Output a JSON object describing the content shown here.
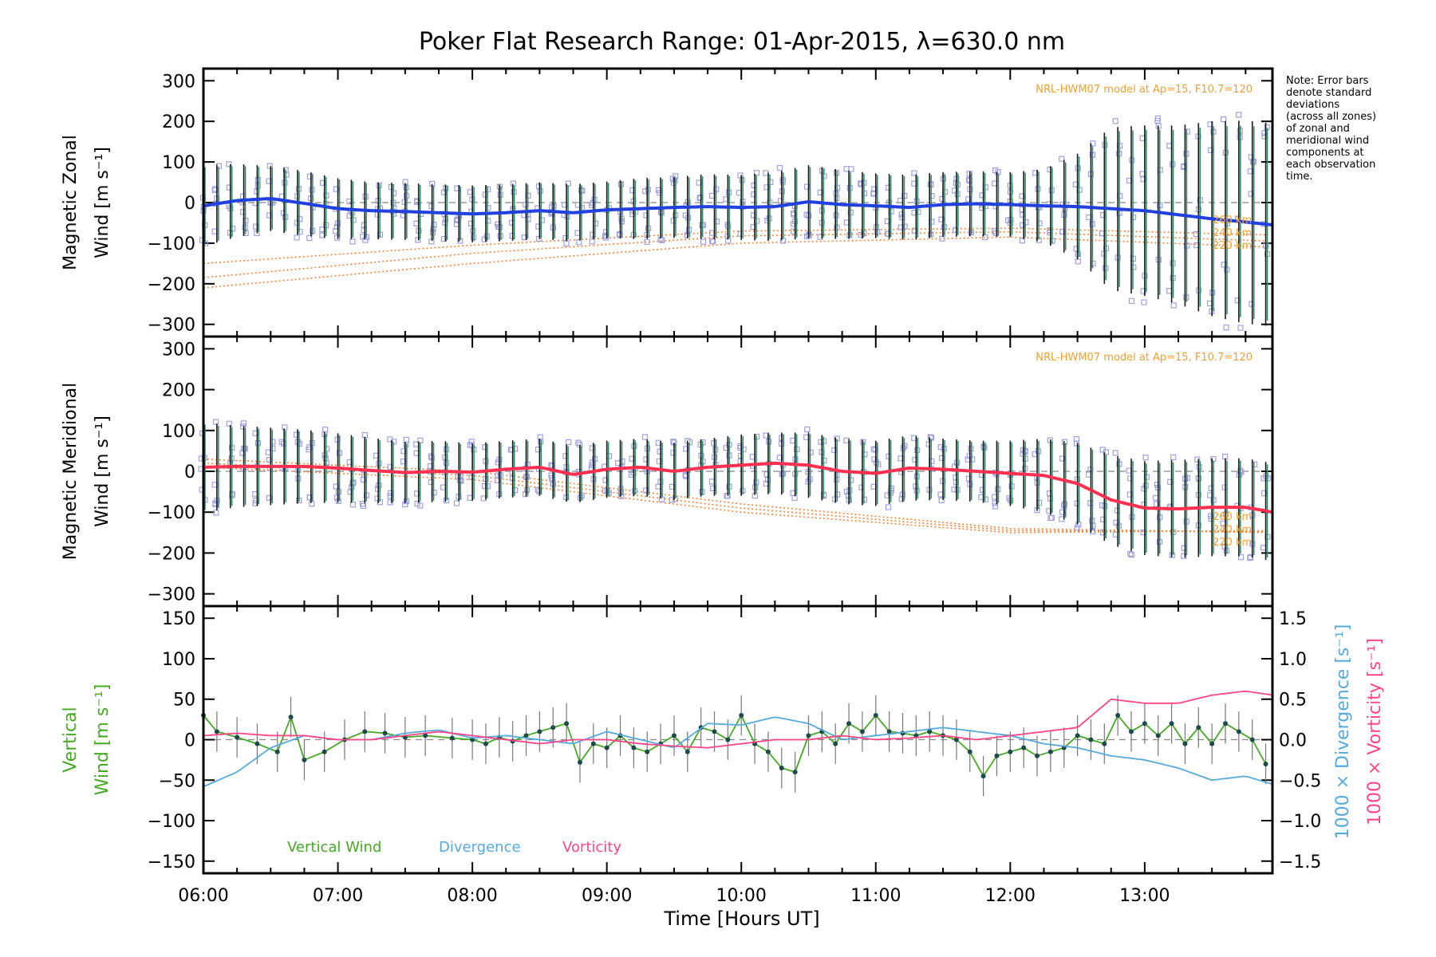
{
  "chart_data": {
    "type": "line",
    "title": "Poker Flat Research Range: 01-Apr-2015, λ=630.0 nm",
    "xlabel": "Time [Hours UT]",
    "x_ticks": [
      "06:00",
      "07:00",
      "08:00",
      "09:00",
      "10:00",
      "11:00",
      "12:00",
      "13:00"
    ],
    "xlim": [
      6.0,
      13.95
    ],
    "note": [
      "Note: Error bars",
      "denote standard",
      "deviations",
      "(across all zones)",
      "of zonal and",
      "meridional wind",
      "components at",
      "each observation",
      "time."
    ],
    "colors": {
      "zonal": "#2040e0",
      "meridional": "#ff3050",
      "model": "#ff8030",
      "scatter": "#9fa0e0",
      "vertical": "#44aa22",
      "divergence": "#55aadd",
      "vorticity": "#ff4488",
      "model_text": "#f0a030"
    },
    "panels": [
      {
        "name": "zonal",
        "ylabel_line1": "Magnetic Zonal",
        "ylabel_line2": "Wind [m s⁻¹]",
        "ylim": [
          -330,
          330
        ],
        "y_ticks": [
          "300",
          "200",
          "100",
          "0",
          "−100",
          "−200",
          "−300"
        ],
        "model_label": "NRL-HWM07 model at Ap=15, F10.7=120",
        "alt_labels": [
          "260 km",
          "240 km",
          "220 km"
        ],
        "series": [
          {
            "name": "Zonal Wind",
            "times": [
              6.0,
              6.25,
              6.5,
              6.75,
              7.0,
              7.25,
              7.5,
              7.75,
              8.0,
              8.25,
              8.5,
              8.75,
              9.0,
              9.25,
              9.5,
              9.75,
              10.0,
              10.25,
              10.5,
              10.75,
              11.0,
              11.25,
              11.5,
              11.75,
              12.0,
              12.25,
              12.5,
              12.75,
              13.0,
              13.25,
              13.5,
              13.75,
              13.95
            ],
            "values": [
              -8,
              5,
              10,
              -2,
              -15,
              -20,
              -22,
              -25,
              -28,
              -25,
              -20,
              -25,
              -18,
              -15,
              -12,
              -10,
              -12,
              -10,
              2,
              -5,
              -8,
              -12,
              -5,
              -3,
              -5,
              -8,
              -10,
              -15,
              -20,
              -30,
              -40,
              -48,
              -55
            ],
            "error": [
              100,
              90,
              80,
              80,
              75,
              70,
              70,
              70,
              70,
              70,
              70,
              70,
              70,
              75,
              75,
              80,
              80,
              85,
              90,
              85,
              80,
              80,
              80,
              80,
              80,
              90,
              130,
              200,
              210,
              220,
              240,
              250,
              250
            ]
          }
        ],
        "model_lines": [
          {
            "times": [
              6.0,
              8.0,
              10.0,
              12.0,
              13.95
            ],
            "values": [
              -210,
              -150,
              -100,
              -85,
              -110
            ]
          },
          {
            "times": [
              6.0,
              8.0,
              10.0,
              12.0,
              13.95
            ],
            "values": [
              -185,
              -125,
              -82,
              -72,
              -95
            ]
          },
          {
            "times": [
              6.0,
              8.0,
              10.0,
              12.0,
              13.95
            ],
            "values": [
              -150,
              -105,
              -70,
              -63,
              -80
            ]
          }
        ]
      },
      {
        "name": "meridional",
        "ylabel_line1": "Magnetic Meridional",
        "ylabel_line2": "Wind [m s⁻¹]",
        "ylim": [
          -330,
          330
        ],
        "y_ticks": [
          "300",
          "200",
          "100",
          "0",
          "−100",
          "−200",
          "−300"
        ],
        "model_label": "NRL-HWM07 model at Ap=15, F10.7=120",
        "alt_labels": [
          "260 km",
          "240 km",
          "220 km"
        ],
        "series": [
          {
            "name": "Meridional Wind",
            "times": [
              6.0,
              6.25,
              6.5,
              6.75,
              7.0,
              7.25,
              7.5,
              7.75,
              8.0,
              8.25,
              8.5,
              8.75,
              9.0,
              9.25,
              9.5,
              9.75,
              10.0,
              10.25,
              10.5,
              10.75,
              11.0,
              11.25,
              11.5,
              11.75,
              12.0,
              12.25,
              12.5,
              12.75,
              13.0,
              13.25,
              13.5,
              13.75,
              13.95
            ],
            "values": [
              10,
              12,
              12,
              12,
              8,
              2,
              -3,
              0,
              -2,
              5,
              10,
              -8,
              5,
              10,
              0,
              10,
              15,
              20,
              15,
              0,
              -5,
              8,
              5,
              0,
              -5,
              -10,
              -30,
              -70,
              -90,
              -92,
              -88,
              -88,
              -100
            ],
            "error": [
              110,
              100,
              95,
              90,
              85,
              80,
              75,
              75,
              70,
              70,
              70,
              70,
              70,
              70,
              70,
              70,
              75,
              75,
              80,
              80,
              80,
              80,
              75,
              75,
              80,
              90,
              100,
              110,
              115,
              120,
              120,
              120,
              120
            ]
          }
        ],
        "model_lines": [
          {
            "times": [
              6.0,
              8.0,
              10.0,
              12.0,
              13.95
            ],
            "values": [
              30,
              0,
              -80,
              -140,
              -150
            ]
          },
          {
            "times": [
              6.0,
              8.0,
              10.0,
              12.0,
              13.95
            ],
            "values": [
              20,
              -10,
              -90,
              -145,
              -148
            ]
          },
          {
            "times": [
              6.0,
              8.0,
              10.0,
              12.0,
              13.95
            ],
            "values": [
              10,
              -20,
              -100,
              -150,
              -145
            ]
          }
        ]
      },
      {
        "name": "vertical",
        "ylabel_line1": "Vertical",
        "ylabel_line2": "Wind [m s⁻¹]",
        "ylim": [
          -165,
          165
        ],
        "y_ticks": [
          "150",
          "100",
          "50",
          "0",
          "−50",
          "−100",
          "−150"
        ],
        "y2_ticks": [
          "1.5",
          "1.0",
          "0.5",
          "0.0",
          "−0.5",
          "−1.0",
          "−1.5"
        ],
        "y2_label_divergence": "1000 × Divergence [s⁻¹]",
        "y2_label_vorticity": "1000 × Vorticity [s⁻¹]",
        "legend": [
          "Vertical Wind",
          "Divergence",
          "Vorticity"
        ],
        "series": [
          {
            "name": "Vertical Wind",
            "times": [
              6.0,
              6.1,
              6.25,
              6.4,
              6.55,
              6.65,
              6.75,
              6.9,
              7.05,
              7.2,
              7.35,
              7.5,
              7.65,
              7.85,
              8.0,
              8.1,
              8.2,
              8.3,
              8.4,
              8.5,
              8.6,
              8.7,
              8.8,
              8.9,
              9.0,
              9.1,
              9.2,
              9.3,
              9.4,
              9.5,
              9.6,
              9.7,
              9.8,
              9.9,
              10.0,
              10.1,
              10.2,
              10.3,
              10.4,
              10.5,
              10.6,
              10.7,
              10.8,
              10.9,
              11.0,
              11.1,
              11.2,
              11.3,
              11.4,
              11.5,
              11.6,
              11.7,
              11.8,
              11.9,
              12.0,
              12.1,
              12.2,
              12.3,
              12.4,
              12.5,
              12.6,
              12.7,
              12.8,
              12.9,
              13.0,
              13.1,
              13.2,
              13.3,
              13.4,
              13.5,
              13.6,
              13.7,
              13.8,
              13.9
            ],
            "values": [
              30,
              10,
              3,
              -5,
              -15,
              28,
              -25,
              -15,
              0,
              10,
              8,
              3,
              5,
              2,
              0,
              -5,
              3,
              -2,
              5,
              10,
              15,
              20,
              -28,
              -5,
              -10,
              5,
              -10,
              -15,
              -5,
              5,
              -15,
              15,
              10,
              0,
              30,
              -5,
              -15,
              -35,
              -40,
              5,
              10,
              -5,
              20,
              10,
              30,
              10,
              8,
              5,
              10,
              5,
              0,
              -15,
              -45,
              -20,
              -15,
              -10,
              -20,
              -15,
              -10,
              5,
              0,
              -5,
              30,
              10,
              20,
              5,
              20,
              -5,
              15,
              -5,
              20,
              10,
              0,
              -30
            ],
            "error": [
              25,
              25,
              25,
              25,
              25,
              25,
              25,
              25,
              25,
              25,
              25,
              25,
              25,
              25,
              25,
              25,
              25,
              25,
              25,
              25,
              25,
              25,
              25,
              25,
              25,
              25,
              25,
              25,
              25,
              25,
              25,
              25,
              25,
              25,
              25,
              25,
              25,
              25,
              25,
              25,
              25,
              25,
              25,
              25,
              25,
              25,
              25,
              25,
              25,
              25,
              25,
              25,
              25,
              25,
              25,
              25,
              25,
              25,
              25,
              25,
              25,
              25,
              25,
              25,
              25,
              25,
              25,
              25,
              25,
              25,
              25,
              25,
              25,
              25
            ]
          },
          {
            "name": "Divergence",
            "axis": "y2",
            "times": [
              6.0,
              6.25,
              6.5,
              6.75,
              7.0,
              7.25,
              7.5,
              7.75,
              8.0,
              8.25,
              8.5,
              8.75,
              9.0,
              9.25,
              9.5,
              9.75,
              10.0,
              10.25,
              10.5,
              10.75,
              11.0,
              11.25,
              11.5,
              11.75,
              12.0,
              12.25,
              12.5,
              12.75,
              13.0,
              13.25,
              13.5,
              13.75,
              13.95
            ],
            "values": [
              -0.58,
              -0.4,
              -0.1,
              0.05,
              0.0,
              0.0,
              0.08,
              0.12,
              0.02,
              0.05,
              0.0,
              -0.05,
              0.1,
              0.0,
              -0.1,
              0.2,
              0.18,
              0.28,
              0.2,
              0.0,
              0.05,
              0.1,
              0.15,
              0.1,
              0.05,
              -0.05,
              -0.1,
              -0.2,
              -0.25,
              -0.35,
              -0.5,
              -0.45,
              -0.55
            ]
          },
          {
            "name": "Vorticity",
            "axis": "y2",
            "times": [
              6.0,
              6.25,
              6.5,
              6.75,
              7.0,
              7.25,
              7.5,
              7.75,
              8.0,
              8.25,
              8.5,
              8.75,
              9.0,
              9.25,
              9.5,
              9.75,
              10.0,
              10.25,
              10.5,
              10.75,
              11.0,
              11.25,
              11.5,
              11.75,
              12.0,
              12.25,
              12.5,
              12.75,
              13.0,
              13.25,
              13.5,
              13.75,
              13.95
            ],
            "values": [
              0.05,
              0.08,
              0.05,
              0.05,
              0.0,
              0.0,
              0.05,
              0.1,
              0.05,
              0.0,
              -0.05,
              0.0,
              0.0,
              -0.05,
              -0.08,
              -0.1,
              -0.05,
              0.0,
              0.0,
              0.05,
              0.0,
              0.02,
              0.05,
              0.0,
              0.05,
              0.1,
              0.15,
              0.5,
              0.45,
              0.45,
              0.55,
              0.6,
              0.55
            ]
          }
        ]
      }
    ]
  }
}
